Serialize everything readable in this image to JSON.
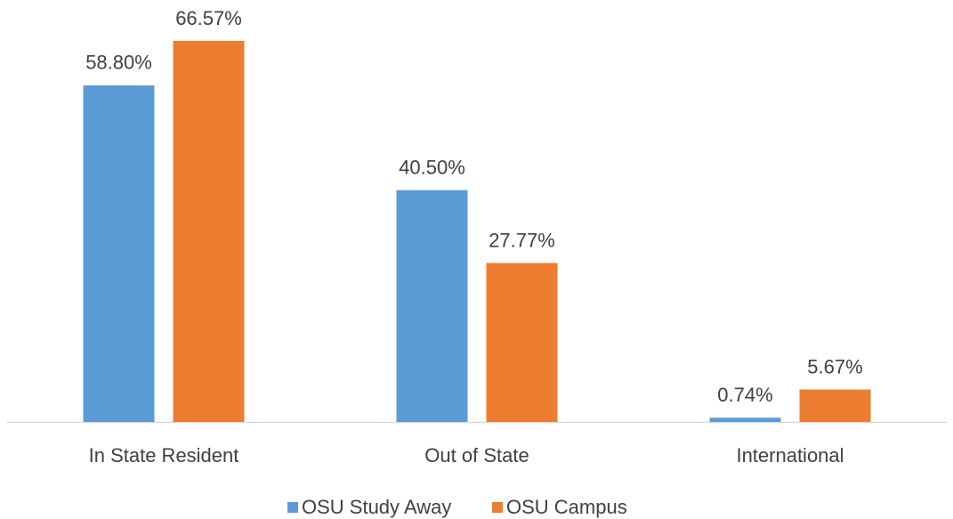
{
  "chart_data": {
    "type": "bar",
    "categories": [
      "In State Resident",
      "Out of State",
      "International"
    ],
    "series": [
      {
        "name": "OSU Study Away",
        "color": "#5b9bd5",
        "values": [
          58.8,
          40.5,
          0.74
        ],
        "value_labels": [
          "58.80%",
          "40.50%",
          "0.74%"
        ]
      },
      {
        "name": "OSU Campus",
        "color": "#ed7d31",
        "values": [
          66.57,
          27.77,
          5.67
        ],
        "value_labels": [
          "66.57%",
          "27.77%",
          "5.67%"
        ]
      }
    ],
    "legend": "bottom"
  }
}
